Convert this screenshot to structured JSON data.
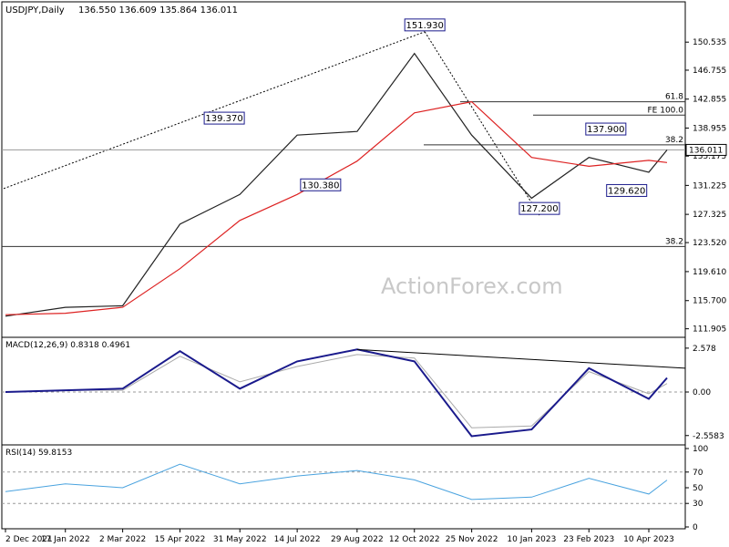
{
  "chart_data": [
    {
      "type": "line",
      "title": "USDJPY,Daily",
      "ohlc_readout": "136.550 136.609 135.864 136.011",
      "current_price_label": "136.011",
      "ylim": [
        111.0,
        154.0
      ],
      "y_ticks": [
        "150.535",
        "146.755",
        "142.855",
        "138.955",
        "135.175",
        "131.225",
        "127.325",
        "123.520",
        "119.610",
        "115.700",
        "111.905"
      ],
      "x_ticks": [
        "2 Dec 2021",
        "17 Jan 2022",
        "2 Mar 2022",
        "15 Apr 2022",
        "31 May 2022",
        "14 Jul 2022",
        "29 Aug 2022",
        "12 Oct 2022",
        "25 Nov 2022",
        "10 Jan 2023",
        "23 Feb 2023",
        "10 Apr 2023"
      ],
      "series": [
        {
          "type": "line",
          "x": [
            "2 Dec 2021",
            "17 Jan 2022",
            "2 Mar 2022",
            "15 Apr 2022",
            "31 May 2022",
            "14 Jul 2022",
            "29 Aug 2022",
            "12 Oct 2022",
            "25 Nov 2022",
            "10 Jan 2023",
            "23 Feb 2023",
            "10 Apr 2023",
            "24 Apr 2023"
          ],
          "values": [
            113.6,
            114.8,
            115.0,
            126.0,
            130.0,
            138.0,
            138.5,
            149.0,
            138.0,
            129.5,
            135.0,
            133.0,
            136.0
          ]
        },
        {
          "type": "line",
          "x": [
            "2 Dec 2021",
            "17 Jan 2022",
            "2 Mar 2022",
            "15 Apr 2022",
            "31 May 2022",
            "14 Jul 2022",
            "29 Aug 2022",
            "12 Oct 2022",
            "25 Nov 2022",
            "10 Jan 2023",
            "23 Feb 2023",
            "10 Apr 2023",
            "24 Apr 2023"
          ],
          "values": [
            113.8,
            114.0,
            114.8,
            120.0,
            126.5,
            130.0,
            134.5,
            141.0,
            142.5,
            135.0,
            133.8,
            134.6,
            134.3
          ],
          "color": "#dd2222"
        }
      ],
      "swing_labels": [
        {
          "label": "151.930",
          "x": "20 Oct 2022",
          "y": 151.93
        },
        {
          "label": "139.370",
          "x": "19 May 2022",
          "y": 139.37
        },
        {
          "label": "130.380",
          "x": "1 Aug 2022",
          "y": 130.38
        },
        {
          "label": "137.900",
          "x": "8 Mar 2023",
          "y": 137.9
        },
        {
          "label": "129.620",
          "x": "24 Mar 2023",
          "y": 129.62
        },
        {
          "label": "127.200",
          "x": "16 Jan 2023",
          "y": 127.2
        }
      ],
      "levels": [
        {
          "label": "61.8",
          "y": 142.5
        },
        {
          "label": "FE 100.0",
          "y": 140.7
        },
        {
          "label": "38.2",
          "y": 136.7
        },
        {
          "label": "38.2",
          "y": 123.0
        }
      ],
      "colors": {
        "price": "#222222",
        "ema": "#dd2222",
        "levels": "#333333"
      }
    },
    {
      "type": "line",
      "title": "MACD(12,26,9) 0.8318 0.4961",
      "ylim": [
        -3.0,
        3.0
      ],
      "y_ticks": [
        "2.578",
        "0.00",
        "-2.5583"
      ],
      "series": [
        {
          "type": "line",
          "x": [
            "2 Dec 2021",
            "17 Jan 2022",
            "2 Mar 2022",
            "15 Apr 2022",
            "31 May 2022",
            "14 Jul 2022",
            "29 Aug 2022",
            "12 Oct 2022",
            "25 Nov 2022",
            "10 Jan 2023",
            "23 Feb 2023",
            "10 Apr 2023",
            "24 Apr 2023"
          ],
          "values": [
            0.0,
            0.1,
            0.2,
            2.4,
            0.2,
            1.8,
            2.5,
            1.8,
            -2.6,
            -2.2,
            1.4,
            -0.4,
            0.83
          ],
          "color": "#1a1a8c"
        },
        {
          "type": "line",
          "x": [
            "2 Dec 2021",
            "17 Jan 2022",
            "2 Mar 2022",
            "15 Apr 2022",
            "31 May 2022",
            "14 Jul 2022",
            "29 Aug 2022",
            "12 Oct 2022",
            "25 Nov 2022",
            "10 Jan 2023",
            "23 Feb 2023",
            "10 Apr 2023",
            "24 Apr 2023"
          ],
          "values": [
            0.0,
            0.1,
            0.1,
            2.1,
            0.6,
            1.5,
            2.2,
            2.0,
            -2.1,
            -2.0,
            1.2,
            -0.1,
            0.5
          ],
          "color": "#aaaaaa"
        }
      ],
      "colors": {
        "macd": "#1a1a8c",
        "signal": "#aaaaaa"
      }
    },
    {
      "type": "line",
      "title": "RSI(14) 59.8153",
      "ylim": [
        0,
        100
      ],
      "y_ticks": [
        "100",
        "70",
        "50",
        "30",
        "0"
      ],
      "series": [
        {
          "type": "line",
          "x": [
            "2 Dec 2021",
            "17 Jan 2022",
            "2 Mar 2022",
            "15 Apr 2022",
            "31 May 2022",
            "14 Jul 2022",
            "29 Aug 2022",
            "12 Oct 2022",
            "25 Nov 2022",
            "10 Jan 2023",
            "23 Feb 2023",
            "10 Apr 2023",
            "24 Apr 2023"
          ],
          "values": [
            45,
            55,
            50,
            80,
            55,
            65,
            72,
            60,
            35,
            38,
            62,
            42,
            59.8
          ],
          "color": "#4aa3df"
        }
      ],
      "colors": {
        "rsi": "#4aa3df"
      }
    }
  ],
  "watermark": "ActionForex.com"
}
